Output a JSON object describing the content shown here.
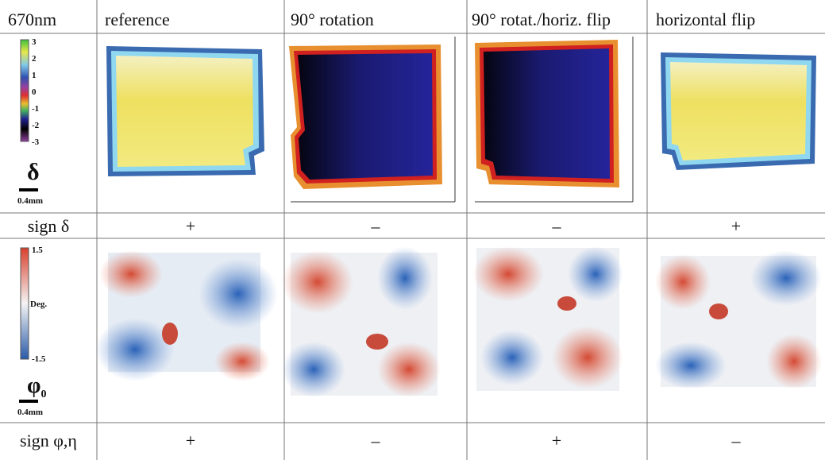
{
  "table": {
    "header": [
      "670nm",
      "reference",
      "90° rotation",
      "90° rotat./horiz. flip",
      "horizontal flip"
    ],
    "rows": [
      {
        "label": "sign δ",
        "signs": [
          "+",
          "–",
          "–",
          "+"
        ]
      },
      {
        "label": "sign φ,η",
        "signs": [
          "+",
          "–",
          "+",
          "–"
        ]
      }
    ]
  },
  "legend_delta": {
    "ticks": [
      "3",
      "2",
      "1",
      "0",
      "-1",
      "-2",
      "-3"
    ],
    "symbol": "δ",
    "scale": "0.4mm"
  },
  "legend_phi": {
    "ticks": [
      "1.5",
      "Deg.",
      "-1.5"
    ],
    "symbol": "φ",
    "subscript": "0",
    "scale": "0.4mm"
  }
}
